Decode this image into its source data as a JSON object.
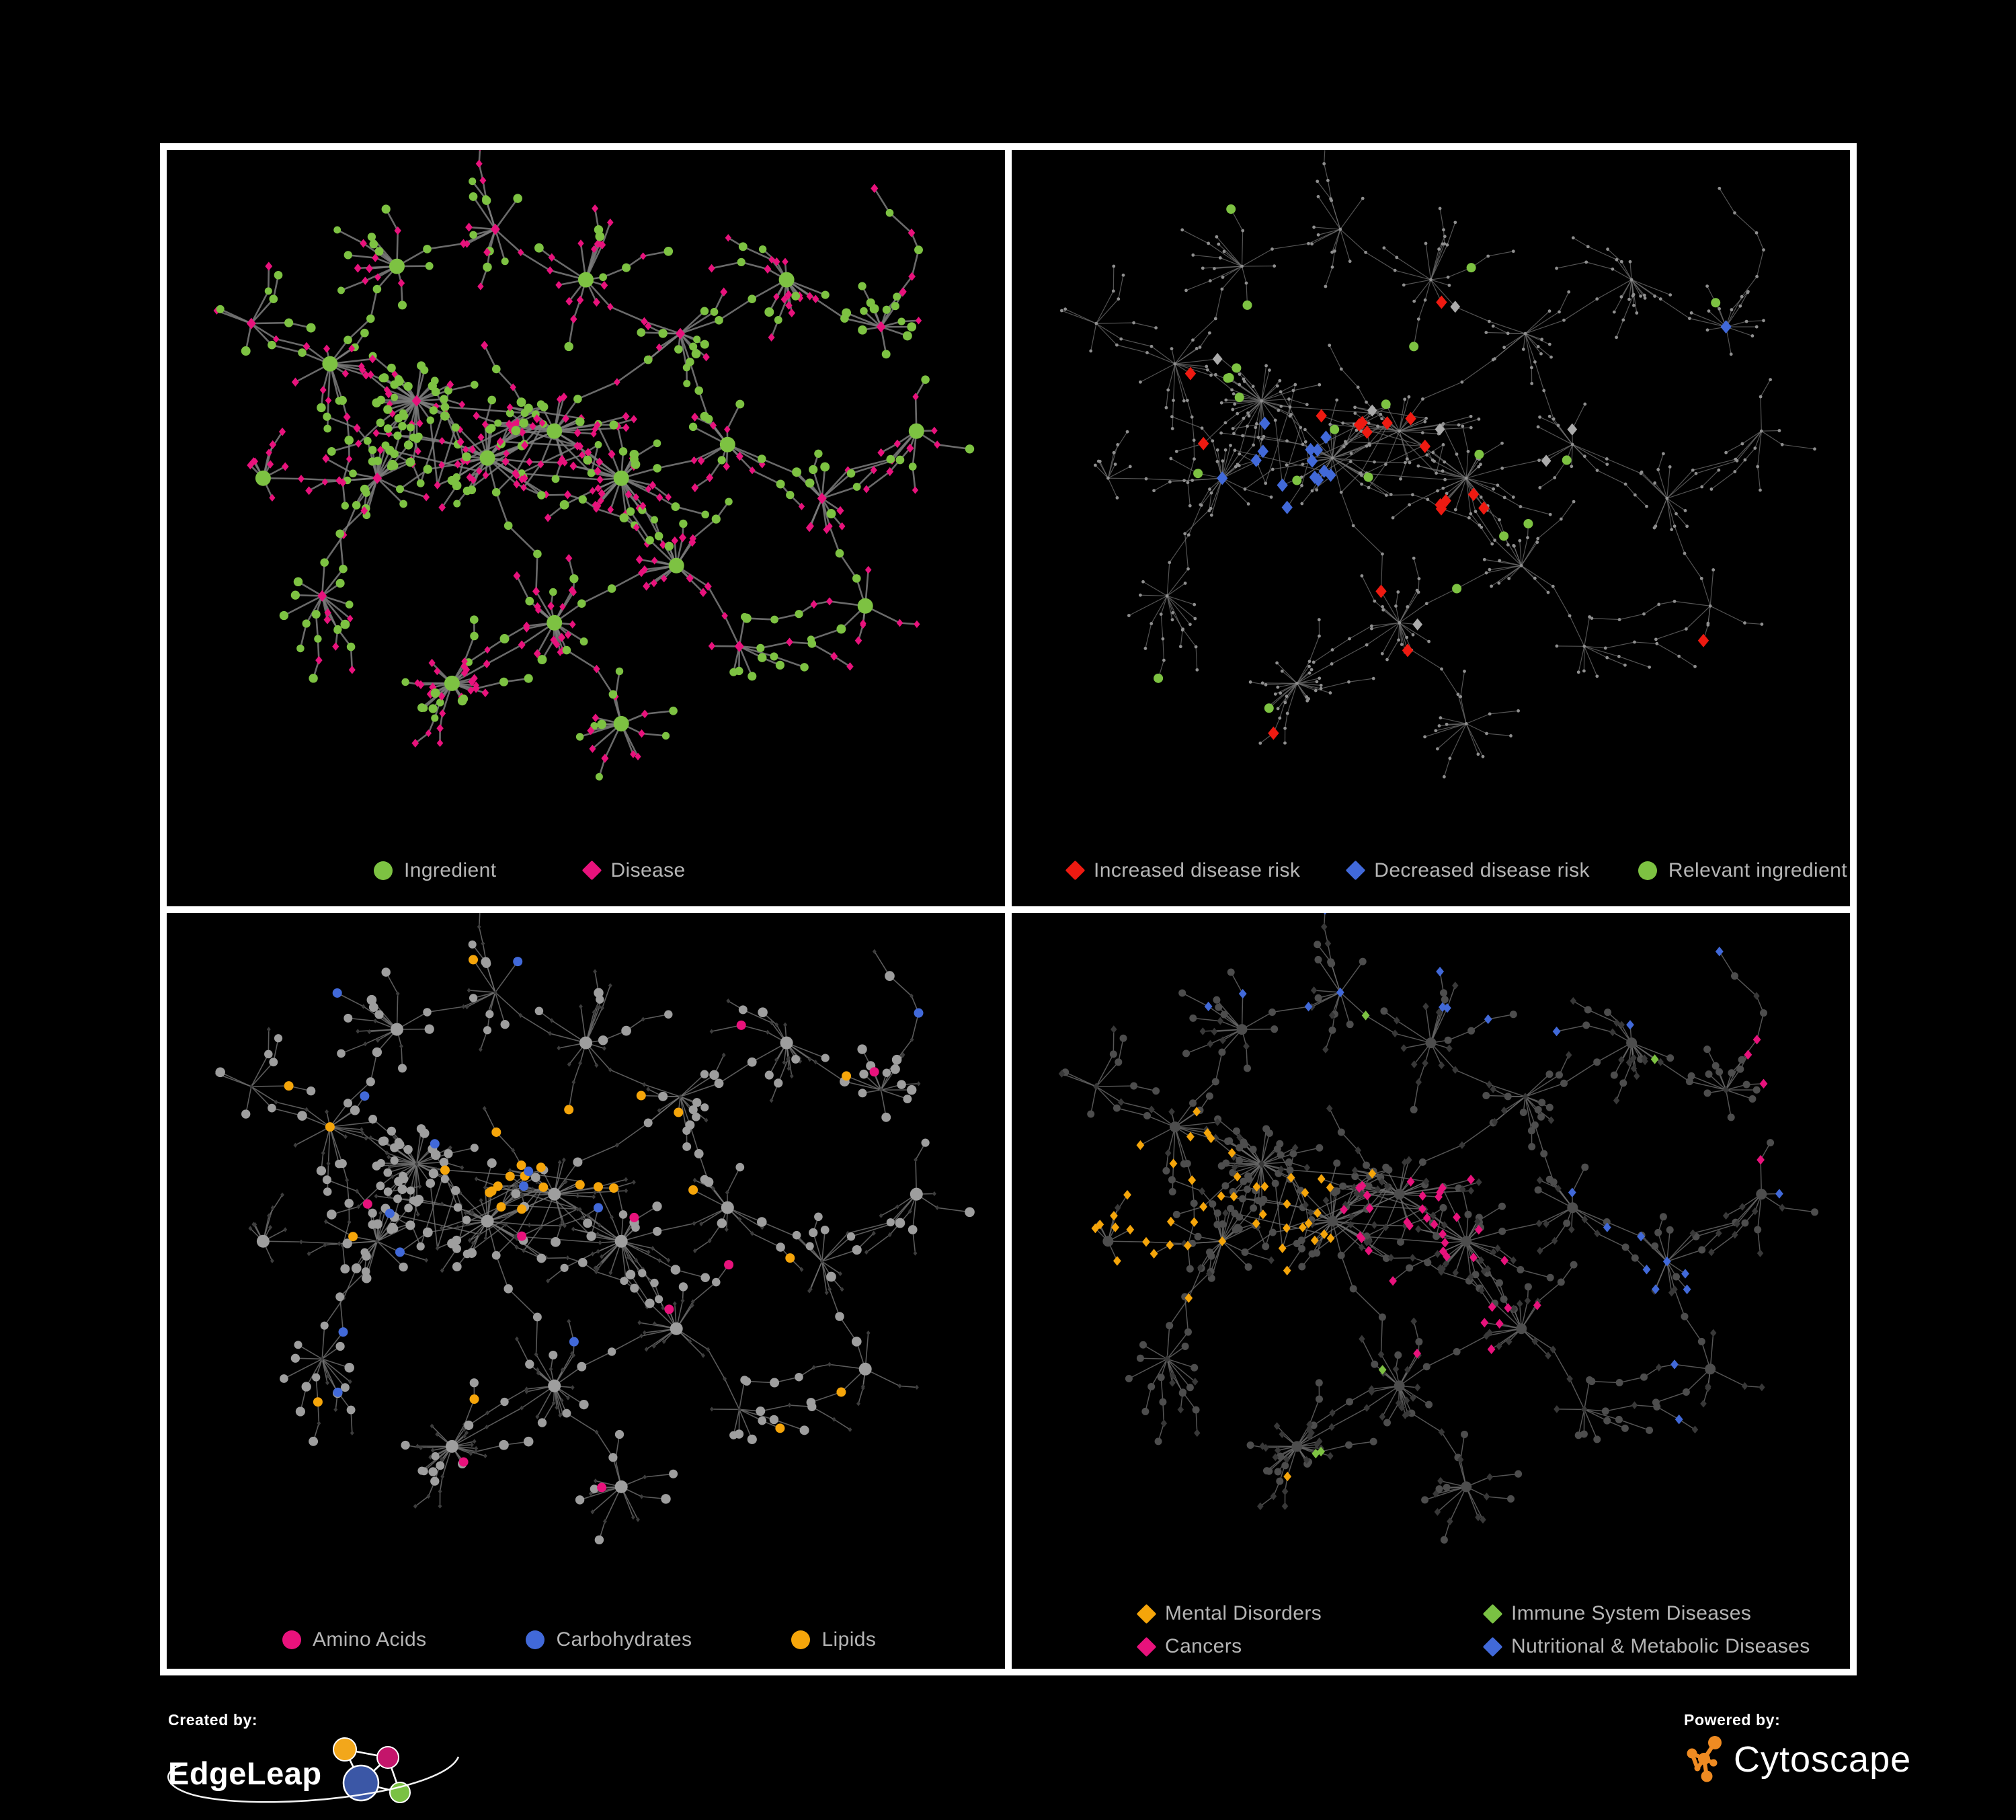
{
  "figure": {
    "background": "#000000",
    "frame_color": "#ffffff"
  },
  "colors": {
    "green": "#7dc242",
    "magenta": "#e8127c",
    "red": "#ee1a11",
    "blue": "#4169d9",
    "orange": "#f5a50a",
    "edge_gray": "#7c7c7c",
    "base_dot": "#8f8f8f",
    "neutral_diamond": "#ababab",
    "gray_circle": "#9e9e9e",
    "dark_diamond": "#3d3d3d",
    "dark_diamond_2": "#383838",
    "dark_circle": "#4d4d4d",
    "legend_text": "#b5b5b5",
    "edgeleap_orange": "#f2a71b",
    "edgeleap_magenta": "#c4156b",
    "edgeleap_blue": "#3b57a6",
    "edgeleap_green": "#7ac143",
    "cytoscape_orange": "#ef8b22",
    "white": "#ffffff"
  },
  "panels": [
    {
      "id": "ingredient-disease",
      "style": "classes",
      "edge": {
        "color": "#7c7c7c",
        "width": 2.6,
        "opacity": 0.85
      },
      "legend": [
        {
          "label": "Ingredient",
          "shape": "circle",
          "color": "#7dc242"
        },
        {
          "label": "Disease",
          "shape": "diamond",
          "color": "#e8127c"
        }
      ]
    },
    {
      "id": "disease-risk",
      "style": "risk",
      "edge": {
        "color": "#6f6f6f",
        "width": 1.2,
        "opacity": 0.75
      },
      "legend": [
        {
          "label": "Increased disease risk",
          "shape": "diamond",
          "color": "#ee1a11"
        },
        {
          "label": "Decreased disease risk",
          "shape": "diamond",
          "color": "#4169d9"
        },
        {
          "label": "Relevant ingredient",
          "shape": "circle",
          "color": "#7dc242"
        }
      ]
    },
    {
      "id": "ingredient-classes",
      "style": "nutrients",
      "edge": {
        "color": "#757575",
        "width": 1.6,
        "opacity": 0.78
      },
      "legend": [
        {
          "label": "Amino Acids",
          "shape": "circle",
          "color": "#e8127c"
        },
        {
          "label": "Carbohydrates",
          "shape": "circle",
          "color": "#4169d9"
        },
        {
          "label": "Lipids",
          "shape": "circle",
          "color": "#f5a50a"
        }
      ]
    },
    {
      "id": "disease-categories",
      "style": "categories",
      "edge": {
        "color": "#6d6d6d",
        "width": 1.5,
        "opacity": 0.78
      },
      "legend": [
        {
          "label": "Mental Disorders",
          "shape": "diamond",
          "color": "#f5a50a"
        },
        {
          "label": "Immune System Diseases",
          "shape": "diamond",
          "color": "#7ac143"
        },
        {
          "label": "Cancers",
          "shape": "diamond",
          "color": "#e8127c"
        },
        {
          "label": "Nutritional & Metabolic Diseases",
          "shape": "diamond",
          "color": "#4169d9"
        }
      ]
    }
  ],
  "footer": {
    "created_by": "Created by:",
    "edgeleap_brand": "EdgeLeap",
    "powered_by": "Powered by:",
    "cytoscape_brand": "Cytoscape"
  },
  "graph_spec": {
    "type": "node-link-network",
    "seed": 1337,
    "hubs": [
      [
        0.285,
        0.355,
        34,
        "D"
      ],
      [
        0.375,
        0.44,
        36,
        "I"
      ],
      [
        0.46,
        0.4,
        22,
        "I"
      ],
      [
        0.545,
        0.47,
        26,
        "I"
      ],
      [
        0.235,
        0.47,
        18,
        "D"
      ],
      [
        0.175,
        0.3,
        12,
        "I"
      ],
      [
        0.26,
        0.155,
        12,
        "I"
      ],
      [
        0.385,
        0.1,
        10,
        "D"
      ],
      [
        0.5,
        0.175,
        12,
        "I"
      ],
      [
        0.62,
        0.255,
        12,
        "D"
      ],
      [
        0.755,
        0.175,
        16,
        "I"
      ],
      [
        0.875,
        0.245,
        12,
        "D"
      ],
      [
        0.68,
        0.42,
        10,
        "I"
      ],
      [
        0.8,
        0.5,
        10,
        "D"
      ],
      [
        0.615,
        0.6,
        14,
        "I"
      ],
      [
        0.46,
        0.685,
        18,
        "I"
      ],
      [
        0.33,
        0.775,
        26,
        "I"
      ],
      [
        0.165,
        0.645,
        12,
        "D"
      ],
      [
        0.09,
        0.47,
        8,
        "I"
      ],
      [
        0.545,
        0.835,
        12,
        "I"
      ],
      [
        0.695,
        0.72,
        8,
        "D"
      ],
      [
        0.855,
        0.66,
        6,
        "I"
      ],
      [
        0.075,
        0.24,
        6,
        "D"
      ],
      [
        0.92,
        0.4,
        6,
        "I"
      ]
    ],
    "cross_links": [
      [
        2,
        9
      ],
      [
        3,
        14
      ],
      [
        1,
        15
      ],
      [
        9,
        12
      ],
      [
        4,
        17
      ],
      [
        5,
        22
      ],
      [
        13,
        23
      ]
    ]
  }
}
